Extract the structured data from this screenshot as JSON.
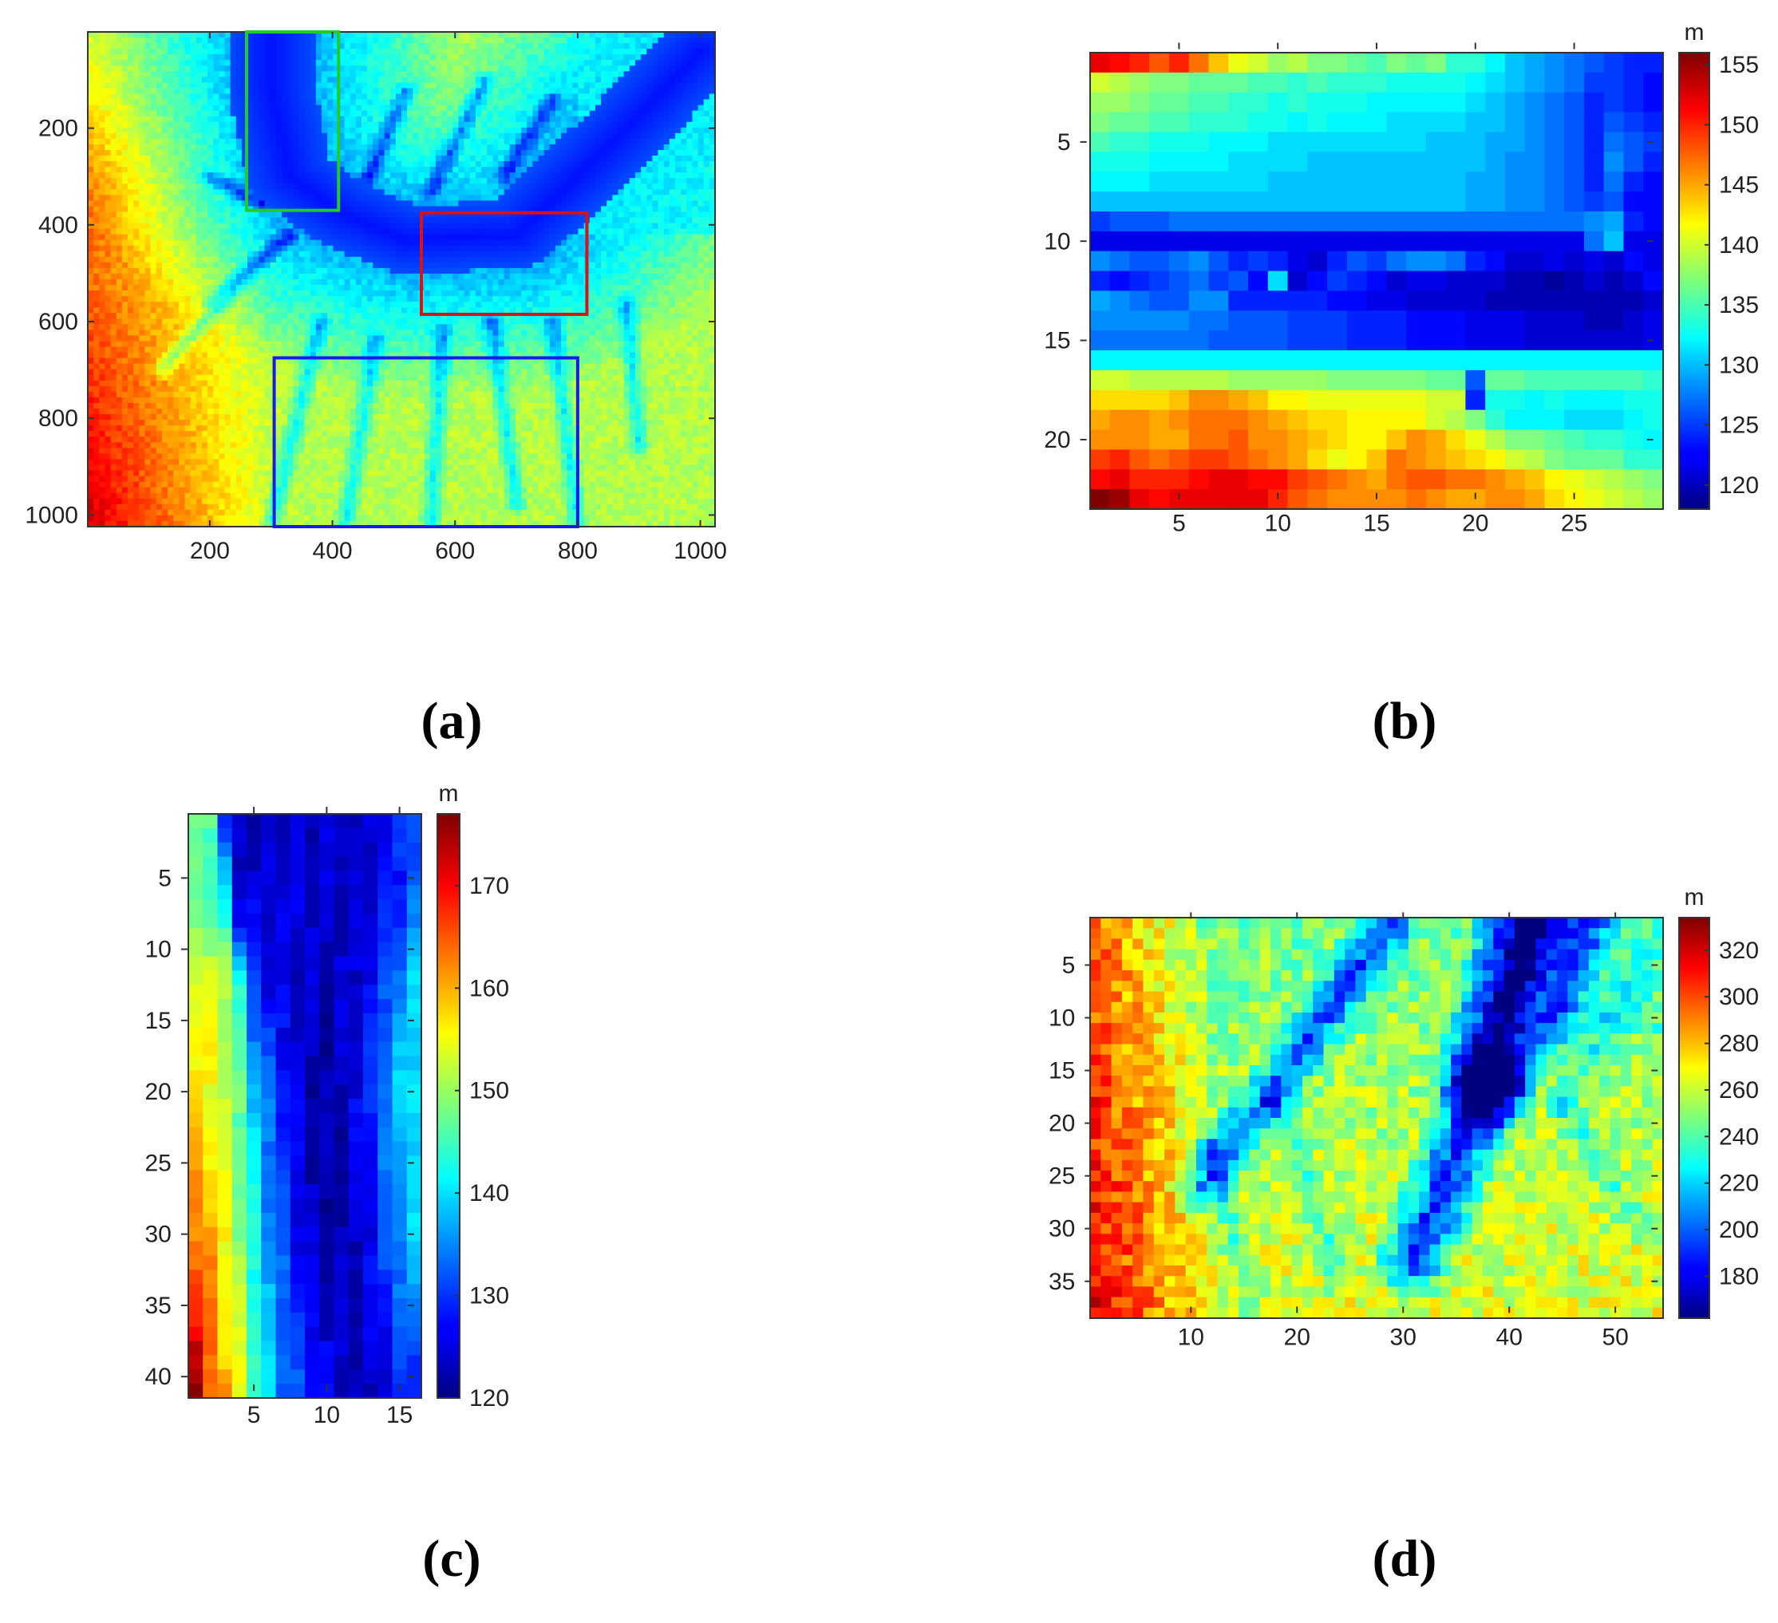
{
  "figure": {
    "panels": [
      {
        "id": "a",
        "caption": "(a)"
      },
      {
        "id": "b",
        "caption": "(b)"
      },
      {
        "id": "c",
        "caption": "(c)"
      },
      {
        "id": "d",
        "caption": "(d)"
      }
    ]
  },
  "chart_data": [
    {
      "panel": "a",
      "type": "heatmap",
      "caption": "(a)",
      "colormap": "jet",
      "xlim": [
        1,
        1024
      ],
      "ylim": [
        1,
        1024
      ],
      "y_reversed": true,
      "x_ticks": [
        200,
        400,
        600,
        800,
        1000
      ],
      "y_ticks": [
        200,
        400,
        600,
        800,
        1000
      ],
      "description_values": {
        "valley": "low-elevation river valley running diagonally from upper right to middle left, with tributaries",
        "highlands": "high elevation at lower left"
      },
      "regions": [
        {
          "color": "#22cc22",
          "x": [
            260,
            410
          ],
          "y": [
            1,
            370
          ]
        },
        {
          "color": "#dd1111",
          "x": [
            545,
            815
          ],
          "y": [
            375,
            585
          ]
        },
        {
          "color": "#1a1aee",
          "x": [
            305,
            800
          ],
          "y": [
            675,
            1024
          ]
        }
      ]
    },
    {
      "panel": "b",
      "type": "heatmap",
      "caption": "(b)",
      "colormap": "jet",
      "cols": 29,
      "rows": 23,
      "x_ticks": [
        5,
        10,
        15,
        20,
        25
      ],
      "y_ticks": [
        5,
        10,
        15,
        20
      ],
      "colorbar": {
        "unit": "m",
        "min": 118,
        "max": 156,
        "ticks": [
          120,
          125,
          130,
          135,
          140,
          145,
          150,
          155
        ]
      },
      "z_rows": [
        [
          152,
          151,
          150,
          148,
          150,
          147,
          144,
          141,
          140,
          138,
          139,
          137,
          137,
          136,
          135,
          137,
          136,
          137,
          134,
          134,
          132,
          130,
          129,
          128,
          127,
          126,
          125,
          124,
          124
        ],
        [
          140,
          139,
          138,
          137,
          137,
          136,
          136,
          136,
          135,
          135,
          134,
          135,
          134,
          134,
          134,
          133,
          133,
          133,
          133,
          132,
          131,
          130,
          129,
          128,
          127,
          125,
          125,
          124,
          123
        ],
        [
          138,
          138,
          137,
          136,
          136,
          135,
          135,
          134,
          134,
          133,
          134,
          133,
          133,
          133,
          132,
          132,
          132,
          132,
          132,
          131,
          130,
          129,
          128,
          127,
          126,
          124,
          125,
          124,
          123
        ],
        [
          137,
          136,
          136,
          135,
          135,
          134,
          134,
          134,
          133,
          133,
          132,
          133,
          132,
          132,
          132,
          131,
          131,
          131,
          131,
          130,
          130,
          129,
          128,
          127,
          126,
          124,
          126,
          125,
          124
        ],
        [
          135,
          134,
          134,
          133,
          133,
          133,
          132,
          132,
          132,
          131,
          131,
          131,
          131,
          131,
          131,
          131,
          131,
          130,
          130,
          130,
          129,
          129,
          128,
          127,
          126,
          124,
          127,
          126,
          125
        ],
        [
          133,
          133,
          133,
          132,
          132,
          132,
          132,
          131,
          131,
          131,
          131,
          130,
          130,
          130,
          130,
          130,
          130,
          130,
          130,
          130,
          129,
          128,
          128,
          127,
          126,
          124,
          128,
          126,
          124
        ],
        [
          132,
          132,
          132,
          131,
          131,
          131,
          131,
          131,
          131,
          130,
          130,
          130,
          130,
          130,
          130,
          130,
          130,
          130,
          130,
          129,
          129,
          128,
          128,
          127,
          126,
          124,
          127,
          124,
          123
        ],
        [
          130,
          130,
          130,
          130,
          130,
          130,
          130,
          130,
          130,
          130,
          130,
          130,
          130,
          130,
          130,
          130,
          130,
          130,
          130,
          129,
          129,
          128,
          128,
          127,
          126,
          125,
          126,
          123,
          123
        ],
        [
          125,
          126,
          126,
          126,
          127,
          127,
          127,
          127,
          127,
          127,
          127,
          127,
          127,
          127,
          127,
          127,
          127,
          127,
          127,
          127,
          127,
          127,
          127,
          127,
          127,
          128,
          129,
          124,
          123
        ],
        [
          122,
          122,
          122,
          122,
          122,
          122,
          122,
          122,
          122,
          122,
          122,
          122,
          122,
          122,
          122,
          122,
          122,
          122,
          122,
          122,
          122,
          122,
          122,
          122,
          122,
          127,
          130,
          122,
          122
        ],
        [
          128,
          127,
          126,
          126,
          127,
          128,
          126,
          124,
          125,
          124,
          122,
          121,
          124,
          126,
          125,
          127,
          128,
          128,
          127,
          124,
          123,
          121,
          121,
          122,
          121,
          122,
          121,
          123,
          122
        ],
        [
          124,
          123,
          124,
          125,
          126,
          127,
          125,
          126,
          123,
          131,
          121,
          123,
          125,
          124,
          123,
          121,
          122,
          122,
          121,
          121,
          121,
          120,
          120,
          119,
          120,
          121,
          120,
          121,
          123
        ],
        [
          129,
          128,
          127,
          126,
          126,
          128,
          128,
          124,
          124,
          124,
          124,
          124,
          123,
          123,
          122,
          122,
          121,
          121,
          121,
          121,
          120,
          120,
          120,
          120,
          120,
          120,
          120,
          120,
          121
        ],
        [
          128,
          128,
          128,
          128,
          128,
          127,
          127,
          126,
          126,
          126,
          125,
          125,
          125,
          124,
          124,
          124,
          123,
          123,
          123,
          122,
          122,
          122,
          121,
          121,
          121,
          120,
          120,
          121,
          122
        ],
        [
          127,
          127,
          127,
          127,
          127,
          127,
          126,
          126,
          126,
          126,
          125,
          125,
          125,
          124,
          124,
          124,
          123,
          123,
          123,
          122,
          122,
          122,
          121,
          121,
          121,
          121,
          121,
          121,
          122
        ],
        [
          132,
          132,
          132,
          132,
          132,
          132,
          132,
          132,
          132,
          132,
          132,
          132,
          132,
          132,
          132,
          132,
          132,
          132,
          132,
          132,
          132,
          132,
          132,
          132,
          132,
          132,
          132,
          132,
          132
        ],
        [
          140,
          140,
          139,
          139,
          139,
          139,
          139,
          138,
          138,
          138,
          138,
          138,
          137,
          137,
          137,
          137,
          137,
          136,
          136,
          126,
          136,
          136,
          135,
          135,
          135,
          135,
          135,
          135,
          134
        ],
        [
          143,
          143,
          143,
          143,
          144,
          146,
          146,
          145,
          144,
          142,
          142,
          141,
          141,
          141,
          141,
          141,
          141,
          140,
          140,
          124,
          133,
          133,
          132,
          133,
          132,
          132,
          132,
          133,
          133
        ],
        [
          145,
          146,
          146,
          145,
          146,
          147,
          147,
          147,
          146,
          145,
          144,
          143,
          143,
          142,
          142,
          142,
          142,
          140,
          139,
          137,
          134,
          132,
          132,
          132,
          131,
          131,
          131,
          132,
          133
        ],
        [
          146,
          146,
          146,
          145,
          145,
          147,
          147,
          148,
          146,
          146,
          145,
          144,
          143,
          142,
          142,
          144,
          146,
          145,
          143,
          141,
          139,
          137,
          137,
          136,
          135,
          134,
          134,
          133,
          132
        ],
        [
          149,
          150,
          148,
          147,
          148,
          149,
          149,
          148,
          147,
          146,
          145,
          143,
          141,
          142,
          144,
          147,
          146,
          145,
          144,
          143,
          142,
          140,
          139,
          137,
          136,
          136,
          136,
          134,
          134
        ],
        [
          151,
          152,
          150,
          150,
          150,
          151,
          152,
          152,
          151,
          151,
          149,
          148,
          147,
          146,
          145,
          147,
          148,
          148,
          147,
          147,
          146,
          145,
          144,
          142,
          141,
          140,
          139,
          138,
          137
        ],
        [
          156,
          155,
          152,
          151,
          152,
          152,
          152,
          152,
          152,
          150,
          148,
          147,
          146,
          146,
          146,
          146,
          147,
          146,
          145,
          145,
          146,
          146,
          145,
          143,
          142,
          141,
          140,
          139,
          138
        ]
      ]
    },
    {
      "panel": "c",
      "type": "heatmap",
      "caption": "(c)",
      "colormap": "jet",
      "cols": 16,
      "rows": 41,
      "x_ticks": [
        5,
        10,
        15
      ],
      "y_ticks": [
        5,
        10,
        15,
        20,
        25,
        30,
        35,
        40
      ],
      "colorbar": {
        "unit": "m",
        "min": 120,
        "max": 177,
        "ticks": [
          120,
          130,
          140,
          150,
          160,
          170
        ]
      },
      "profile": {
        "row_anchors": [
          1,
          8,
          12,
          20,
          30,
          41
        ],
        "col_values_at_anchors": [
          [
            146,
            146,
            130,
            123,
            123,
            124,
            124,
            125,
            124,
            125,
            125,
            123,
            124,
            126,
            128,
            132
          ],
          [
            147,
            147,
            142,
            128,
            126,
            125,
            125,
            126,
            125,
            124,
            124,
            124,
            126,
            128,
            130,
            133
          ],
          [
            155,
            154,
            152,
            142,
            130,
            126,
            125,
            124,
            124,
            123,
            124,
            125,
            127,
            131,
            135,
            138
          ],
          [
            157,
            155,
            152,
            147,
            139,
            133,
            129,
            125,
            123,
            122,
            123,
            126,
            129,
            134,
            138,
            141
          ],
          [
            163,
            160,
            155,
            150,
            142,
            136,
            131,
            127,
            124,
            123,
            123,
            124,
            127,
            131,
            135,
            138
          ],
          [
            175,
            166,
            160,
            154,
            146,
            139,
            134,
            131,
            128,
            126,
            124,
            123,
            124,
            126,
            128,
            130
          ]
        ]
      }
    },
    {
      "panel": "d",
      "type": "heatmap",
      "caption": "(d)",
      "colormap": "jet",
      "cols": 54,
      "rows": 38,
      "x_ticks": [
        10,
        20,
        30,
        40,
        50
      ],
      "y_ticks": [
        5,
        10,
        15,
        20,
        25,
        30,
        35
      ],
      "colorbar": {
        "unit": "m",
        "min": 162,
        "max": 334,
        "ticks": [
          180,
          200,
          220,
          240,
          260,
          280,
          300,
          320
        ]
      },
      "description_values": {
        "main_channel": "low valley from top near column 42 down to bottom near column 30",
        "side_channel": "valley from top near column 28 running down-left to column 10",
        "ridges": "high elevation near left edge and lower-left / lower-middle"
      }
    }
  ]
}
